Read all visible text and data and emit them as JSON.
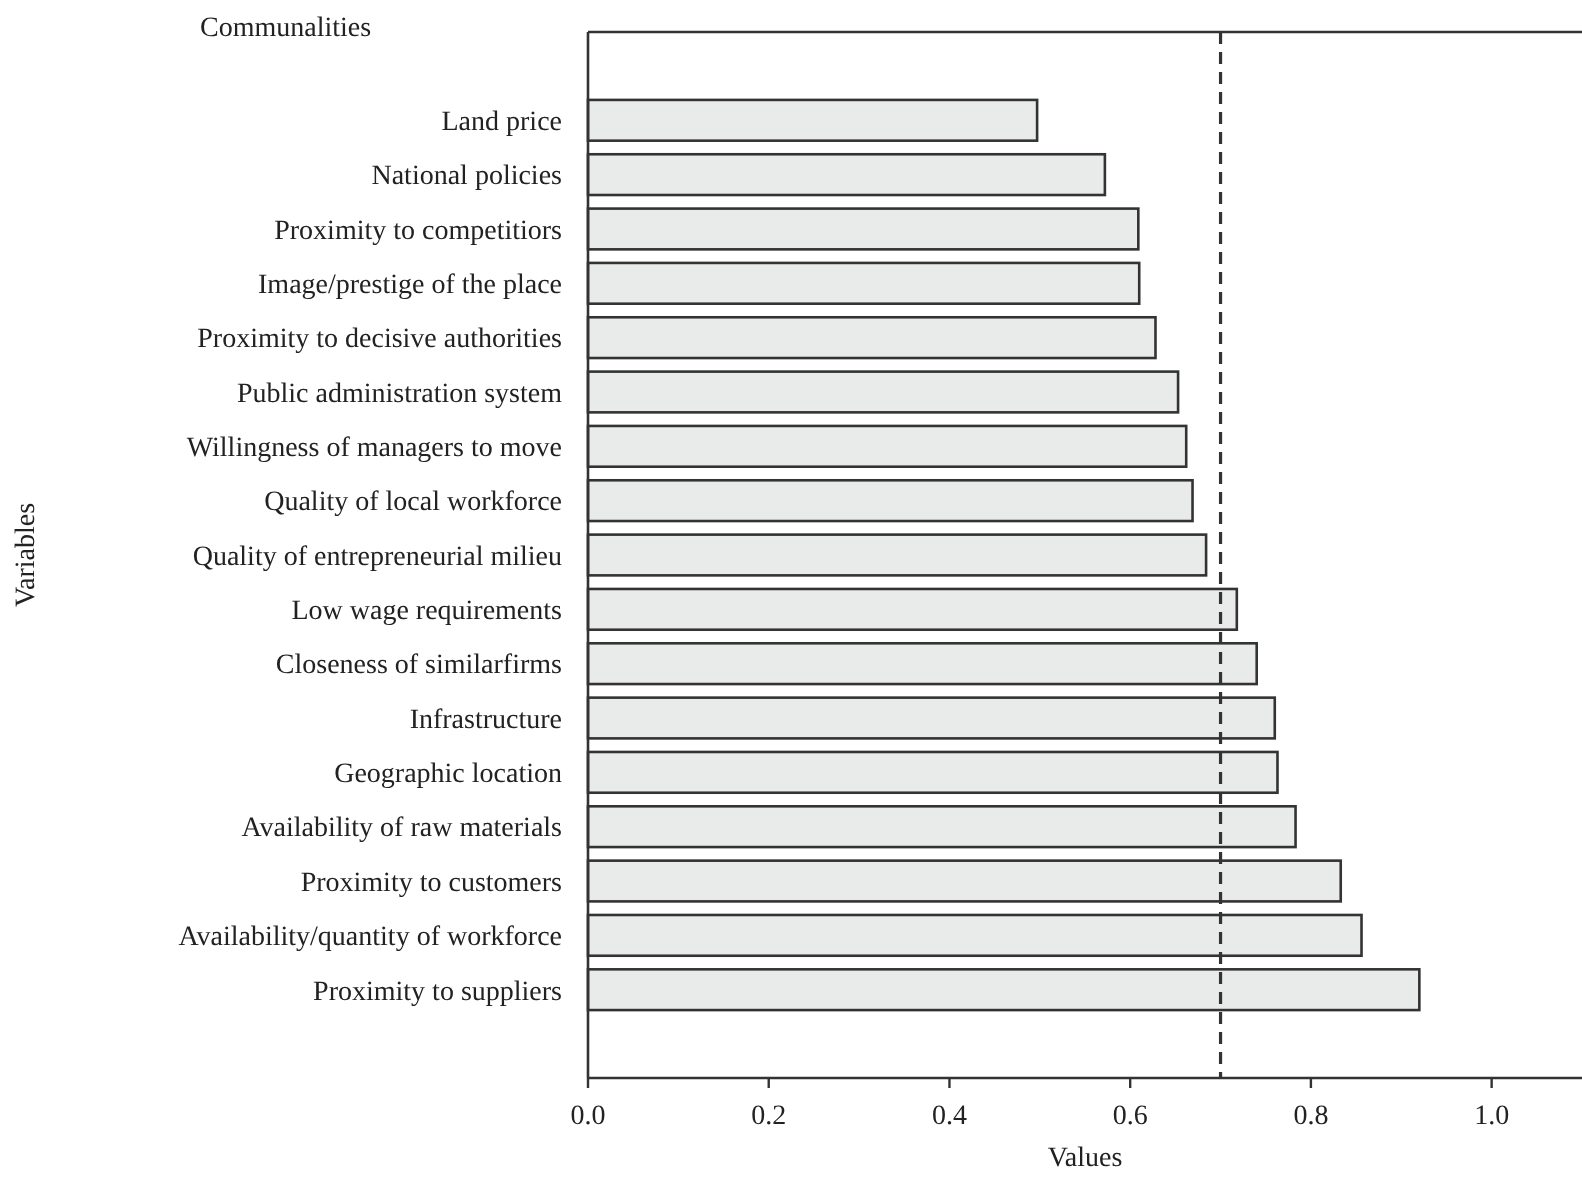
{
  "chart_data": {
    "type": "bar",
    "orientation": "horizontal",
    "title": "Communalities",
    "xlabel": "Values",
    "ylabel": "Variables",
    "categories": [
      "Land price",
      "National policies",
      "Proximity to competitiors",
      "Image/prestige of the place",
      "Proximity to decisive authorities",
      "Public administration system",
      "Willingness of managers to move",
      "Quality of local workforce",
      "Quality of entrepreneurial milieu",
      "Low wage requirements",
      "Closeness of similarfirms",
      "Infrastructure",
      "Geographic location",
      "Availability of raw materials",
      "Proximity to customers",
      "Availability/quantity of workforce",
      "Proximity to suppliers"
    ],
    "values": [
      0.497,
      0.572,
      0.609,
      0.61,
      0.628,
      0.653,
      0.662,
      0.669,
      0.684,
      0.718,
      0.74,
      0.76,
      0.763,
      0.783,
      0.833,
      0.856,
      0.92
    ],
    "color": "#e9ebea",
    "xlim": [
      0,
      1.1
    ],
    "xticks": [
      {
        "value": 0,
        "label": "0.0"
      },
      0.2,
      0.4,
      0.6,
      0.8,
      {
        "value": 1,
        "label": "1.0"
      }
    ],
    "ref_lines": [
      {
        "axis": "x",
        "value": 0.7,
        "line_style": "dashed",
        "color": "#333333"
      }
    ],
    "grid": false
  }
}
